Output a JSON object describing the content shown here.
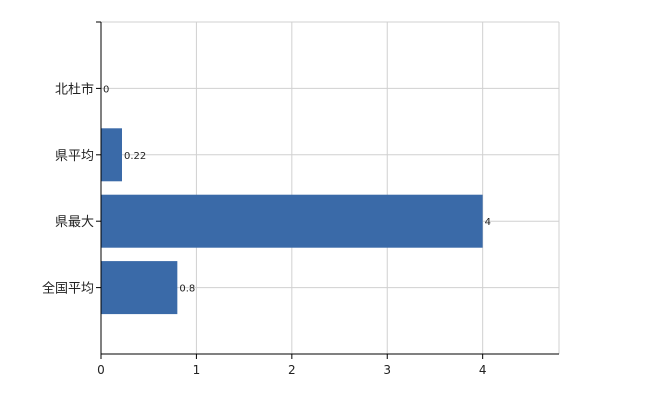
{
  "chart_data": {
    "type": "bar",
    "orientation": "horizontal",
    "categories": [
      "北杜市",
      "県平均",
      "県最大",
      "全国平均"
    ],
    "values": [
      0,
      0.22,
      4,
      0.8
    ],
    "value_labels": [
      "0",
      "0.22",
      "4",
      "0.8"
    ],
    "xlim": [
      0,
      4.8
    ],
    "x_ticks": [
      0,
      1,
      2,
      3,
      4
    ],
    "grid": true,
    "bar_color": "#3a6aa8",
    "grid_color": "#d0d0d0",
    "axis_color": "#000000"
  }
}
